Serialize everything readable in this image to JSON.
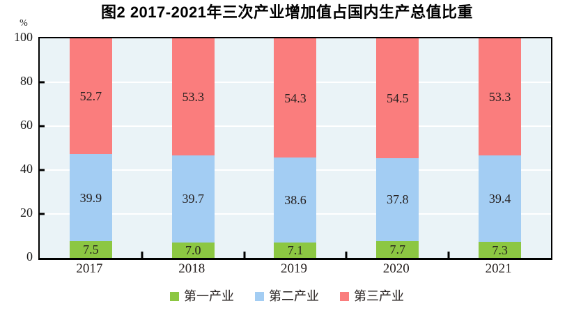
{
  "chart_data": {
    "type": "bar",
    "stacked": true,
    "title": "图2 2017-2021年三次产业增加值占国内生产总值比重",
    "unit_label": "%",
    "categories": [
      "2017",
      "2018",
      "2019",
      "2020",
      "2021"
    ],
    "series": [
      {
        "name": "第一产业",
        "color": "#8cc742",
        "values": [
          7.5,
          7.0,
          7.1,
          7.7,
          7.3
        ]
      },
      {
        "name": "第二产业",
        "color": "#a3cdf3",
        "values": [
          39.9,
          39.7,
          38.6,
          37.8,
          39.4
        ]
      },
      {
        "name": "第三产业",
        "color": "#fa7d7d",
        "values": [
          52.7,
          53.3,
          54.3,
          54.5,
          53.3
        ]
      }
    ],
    "ylim": [
      0,
      100
    ],
    "yticks": [
      0,
      20,
      40,
      60,
      80,
      100
    ],
    "grid": "horizontal-white-at-20-40-60-80",
    "legend_position": "bottom",
    "plot_background": "#eaf3f7",
    "gridline_color": "#ffffff",
    "axis_color": "#000000"
  }
}
